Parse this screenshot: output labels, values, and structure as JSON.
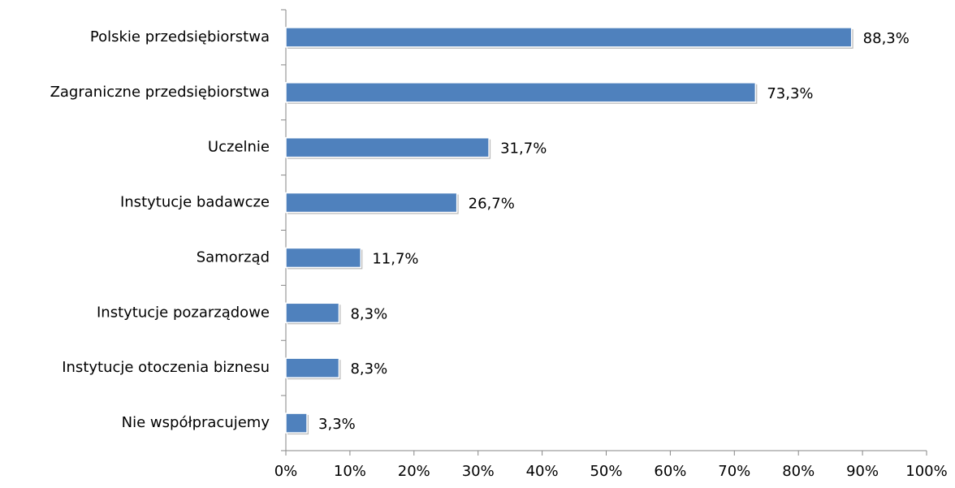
{
  "chart_data": {
    "type": "bar",
    "orientation": "horizontal",
    "categories": [
      "Polskie przedsiębiorstwa",
      "Zagraniczne przedsiębiorstwa",
      "Uczelnie",
      "Instytucje badawcze",
      "Samorząd",
      "Instytucje pozarządowe",
      "Instytucje otoczenia biznesu",
      "Nie współpracujemy"
    ],
    "values": [
      88.3,
      73.3,
      31.7,
      26.7,
      11.7,
      8.3,
      8.3,
      3.3
    ],
    "value_labels": [
      "88,3%",
      "73,3%",
      "31,7%",
      "26,7%",
      "11,7%",
      "8,3%",
      "8,3%",
      "3,3%"
    ],
    "color": "#4f81bd",
    "xlim": [
      0,
      100
    ],
    "xticks": [
      {
        "value": 0,
        "label": "0%"
      },
      {
        "value": 10,
        "label": "10%"
      },
      {
        "value": 20,
        "label": "20%"
      },
      {
        "value": 30,
        "label": "30%"
      },
      {
        "value": 40,
        "label": "40%"
      },
      {
        "value": 50,
        "label": "50%"
      },
      {
        "value": 60,
        "label": "60%"
      },
      {
        "value": 70,
        "label": "70%"
      },
      {
        "value": 80,
        "label": "80%"
      },
      {
        "value": 90,
        "label": "90%"
      },
      {
        "value": 100,
        "label": "100%"
      }
    ],
    "grid": false
  }
}
